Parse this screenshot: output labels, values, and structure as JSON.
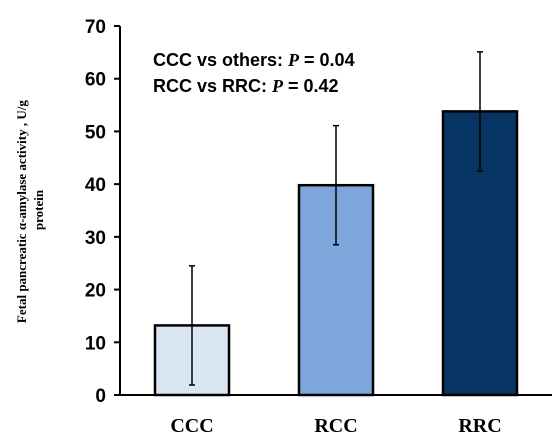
{
  "chart_data": {
    "type": "bar",
    "title": "",
    "xlabel": "",
    "ylabel_line1": "Fetal pancreatic α-amylase activity , U/g",
    "ylabel_line2": "protein",
    "ylim": [
      0,
      70
    ],
    "yticks": [
      "0",
      "10",
      "20",
      "30",
      "40",
      "50",
      "60",
      "70"
    ],
    "categories": [
      "CCC",
      "RCC",
      "RRC"
    ],
    "values": [
      13.2,
      39.8,
      53.8
    ],
    "error": [
      11.3,
      11.3,
      11.3
    ],
    "colors": [
      "#dae5f3",
      "#7ea6db",
      "#063463"
    ],
    "annotations": [
      {
        "label": "CCC vs others: ",
        "p_symbol": "P",
        "value": " = 0.04"
      },
      {
        "label": "RCC vs RRC: ",
        "p_symbol": "P",
        "value": " = 0.42"
      }
    ],
    "grid": false,
    "legend": "none"
  }
}
